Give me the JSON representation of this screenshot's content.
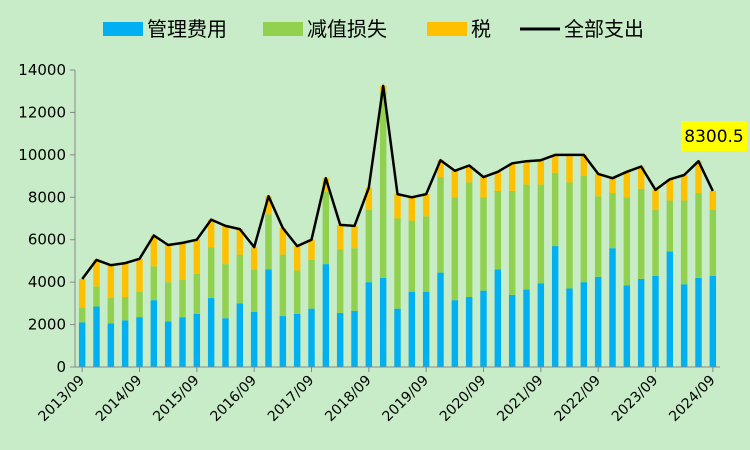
{
  "chart_data": {
    "type": "bar",
    "stacked": true,
    "title": "",
    "xlabel": "",
    "ylabel": "",
    "ylim": [
      0,
      14000
    ],
    "yticks": [
      0,
      2000,
      4000,
      6000,
      8000,
      10000,
      12000,
      14000
    ],
    "xtick_labels": [
      "2013/09",
      "2014/09",
      "2015/09",
      "2016/09",
      "2017/09",
      "2018/09",
      "2019/09",
      "2020/09",
      "2021/09",
      "2022/09",
      "2023/09",
      "2024/09"
    ],
    "legend_position": "top",
    "grid": false,
    "series": [
      {
        "name": "管理费用",
        "type": "bar",
        "color": "#00b0f0",
        "values": [
          2100,
          2850,
          2050,
          2200,
          2350,
          3150,
          2150,
          2350,
          2500,
          3250,
          2300,
          3000,
          2600,
          4600,
          2400,
          2500,
          2750,
          4850,
          2550,
          2650,
          4000,
          4200,
          2750,
          3550,
          3550,
          4450,
          3150,
          3300,
          3600,
          4600,
          3400,
          3650,
          3950,
          5700,
          3700,
          4000,
          4250,
          5600,
          3850,
          4150,
          4300,
          5450,
          3900,
          4200,
          4300
        ]
      },
      {
        "name": "减值损失",
        "type": "bar",
        "color": "#92d050",
        "values": [
          700,
          950,
          1200,
          1100,
          1200,
          1600,
          1850,
          1750,
          1900,
          2400,
          2550,
          2300,
          2000,
          2600,
          2900,
          2050,
          2300,
          3400,
          3000,
          2950,
          3400,
          8800,
          4250,
          3350,
          3550,
          4500,
          4850,
          5400,
          4400,
          3700,
          4900,
          4950,
          4650,
          3450,
          5000,
          5000,
          3800,
          2600,
          4150,
          4250,
          3100,
          2400,
          3950,
          4000,
          3100
        ]
      },
      {
        "name": "税",
        "type": "bar",
        "color": "#ffc000",
        "values": [
          1350,
          1250,
          1550,
          1600,
          1550,
          1450,
          1750,
          1750,
          1600,
          1300,
          1800,
          1200,
          1050,
          850,
          1250,
          1150,
          950,
          650,
          1150,
          1050,
          1050,
          250,
          1150,
          1100,
          1050,
          800,
          1250,
          800,
          950,
          900,
          1300,
          1100,
          1150,
          850,
          1300,
          1000,
          1050,
          700,
          1200,
          1050,
          950,
          1000,
          1200,
          1500,
          900
        ]
      },
      {
        "name": "全部支出",
        "type": "line",
        "color": "#000000",
        "values": [
          4150,
          5050,
          4800,
          4900,
          5100,
          6200,
          5750,
          5850,
          6000,
          6950,
          6650,
          6500,
          5650,
          8050,
          6550,
          5700,
          6000,
          8900,
          6700,
          6650,
          8450,
          13250,
          8150,
          8000,
          8150,
          9750,
          9250,
          9500,
          8950,
          9200,
          9600,
          9700,
          9750,
          10000,
          10000,
          10000,
          9100,
          8900,
          9200,
          9450,
          8350,
          8850,
          9050,
          9700,
          8300.5
        ]
      }
    ],
    "annotations": [
      {
        "text": "8300.5",
        "series": "全部支出",
        "index": 44,
        "background": "#ffff00"
      }
    ]
  }
}
